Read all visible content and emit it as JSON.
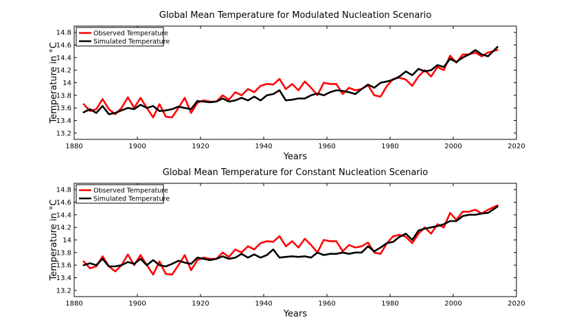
{
  "chart_data": [
    {
      "type": "line",
      "title": "Global Mean Temperature for Modulated Nucleation Scenario",
      "xlabel": "Years",
      "ylabel": "Temperature in",
      "ylabel_unit": "°C",
      "xlim": [
        1880,
        2020
      ],
      "ylim": [
        13.1,
        14.9
      ],
      "xticks": [
        1880,
        1900,
        1920,
        1940,
        1960,
        1980,
        2000,
        2020
      ],
      "yticks": [
        13.2,
        13.4,
        13.6,
        13.8,
        14,
        14.2,
        14.4,
        14.6,
        14.8
      ],
      "legend_position": "top-left",
      "series": [
        {
          "name": "Observed Temperature",
          "color": "#ff0000",
          "x": [
            1883,
            1885,
            1887,
            1889,
            1891,
            1893,
            1895,
            1897,
            1899,
            1901,
            1903,
            1905,
            1907,
            1909,
            1911,
            1913,
            1915,
            1917,
            1919,
            1921,
            1923,
            1925,
            1927,
            1929,
            1931,
            1933,
            1935,
            1937,
            1939,
            1941,
            1943,
            1945,
            1947,
            1949,
            1951,
            1953,
            1955,
            1957,
            1959,
            1961,
            1963,
            1965,
            1967,
            1969,
            1971,
            1973,
            1975,
            1977,
            1979,
            1981,
            1983,
            1985,
            1987,
            1989,
            1991,
            1993,
            1995,
            1997,
            1999,
            2001,
            2003,
            2005,
            2007,
            2009,
            2011,
            2014
          ],
          "values": [
            13.66,
            13.55,
            13.58,
            13.74,
            13.58,
            13.5,
            13.6,
            13.77,
            13.6,
            13.76,
            13.6,
            13.45,
            13.66,
            13.46,
            13.45,
            13.6,
            13.76,
            13.52,
            13.68,
            13.72,
            13.7,
            13.7,
            13.8,
            13.73,
            13.85,
            13.8,
            13.9,
            13.85,
            13.95,
            13.98,
            13.97,
            14.06,
            13.9,
            13.98,
            13.88,
            14.02,
            13.92,
            13.8,
            14.0,
            13.98,
            13.98,
            13.82,
            13.92,
            13.88,
            13.9,
            13.96,
            13.8,
            13.78,
            13.95,
            14.06,
            14.08,
            14.05,
            13.95,
            14.1,
            14.2,
            14.1,
            14.25,
            14.2,
            14.43,
            14.32,
            14.45,
            14.45,
            14.48,
            14.42,
            14.48,
            14.52
          ]
        },
        {
          "name": "Simulated Temperature",
          "color": "#000000",
          "x": [
            1883,
            1885,
            1887,
            1889,
            1891,
            1893,
            1895,
            1897,
            1899,
            1901,
            1903,
            1905,
            1907,
            1909,
            1911,
            1913,
            1915,
            1917,
            1919,
            1921,
            1923,
            1925,
            1927,
            1929,
            1931,
            1933,
            1935,
            1937,
            1939,
            1941,
            1943,
            1945,
            1947,
            1949,
            1951,
            1953,
            1955,
            1957,
            1959,
            1961,
            1963,
            1965,
            1967,
            1969,
            1971,
            1973,
            1975,
            1977,
            1979,
            1981,
            1983,
            1985,
            1987,
            1989,
            1991,
            1993,
            1995,
            1997,
            1999,
            2001,
            2003,
            2005,
            2007,
            2009,
            2011,
            2014
          ],
          "values": [
            13.53,
            13.58,
            13.52,
            13.63,
            13.5,
            13.52,
            13.56,
            13.6,
            13.58,
            13.65,
            13.6,
            13.63,
            13.55,
            13.56,
            13.58,
            13.62,
            13.6,
            13.58,
            13.71,
            13.7,
            13.69,
            13.7,
            13.75,
            13.7,
            13.72,
            13.76,
            13.72,
            13.78,
            13.72,
            13.8,
            13.82,
            13.88,
            13.72,
            13.73,
            13.75,
            13.75,
            13.8,
            13.83,
            13.8,
            13.85,
            13.88,
            13.87,
            13.85,
            13.82,
            13.9,
            13.97,
            13.92,
            14.0,
            14.02,
            14.05,
            14.1,
            14.18,
            14.12,
            14.22,
            14.18,
            14.2,
            14.28,
            14.25,
            14.38,
            14.33,
            14.4,
            14.45,
            14.52,
            14.45,
            14.42,
            14.57
          ]
        }
      ]
    },
    {
      "type": "line",
      "title": "Global Mean Temperature for Constant Nucleation Scenario",
      "xlabel": "Years",
      "ylabel": "Temperature in",
      "ylabel_unit": "°C",
      "xlim": [
        1880,
        2020
      ],
      "ylim": [
        13.1,
        14.9
      ],
      "xticks": [
        1880,
        1900,
        1920,
        1940,
        1960,
        1980,
        2000,
        2020
      ],
      "yticks": [
        13.2,
        13.4,
        13.6,
        13.8,
        14,
        14.2,
        14.4,
        14.6,
        14.8
      ],
      "legend_position": "top-left",
      "series": [
        {
          "name": "Observed Temperature",
          "color": "#ff0000",
          "x": [
            1883,
            1885,
            1887,
            1889,
            1891,
            1893,
            1895,
            1897,
            1899,
            1901,
            1903,
            1905,
            1907,
            1909,
            1911,
            1913,
            1915,
            1917,
            1919,
            1921,
            1923,
            1925,
            1927,
            1929,
            1931,
            1933,
            1935,
            1937,
            1939,
            1941,
            1943,
            1945,
            1947,
            1949,
            1951,
            1953,
            1955,
            1957,
            1959,
            1961,
            1963,
            1965,
            1967,
            1969,
            1971,
            1973,
            1975,
            1977,
            1979,
            1981,
            1983,
            1985,
            1987,
            1989,
            1991,
            1993,
            1995,
            1997,
            1999,
            2001,
            2003,
            2005,
            2007,
            2009,
            2011,
            2014
          ],
          "values": [
            13.66,
            13.55,
            13.58,
            13.74,
            13.58,
            13.5,
            13.6,
            13.77,
            13.6,
            13.76,
            13.6,
            13.45,
            13.66,
            13.46,
            13.45,
            13.6,
            13.76,
            13.52,
            13.68,
            13.72,
            13.7,
            13.7,
            13.8,
            13.73,
            13.85,
            13.8,
            13.9,
            13.85,
            13.95,
            13.98,
            13.97,
            14.06,
            13.9,
            13.98,
            13.88,
            14.02,
            13.92,
            13.8,
            14.0,
            13.98,
            13.98,
            13.82,
            13.92,
            13.88,
            13.9,
            13.96,
            13.8,
            13.78,
            13.95,
            14.06,
            14.08,
            14.05,
            13.95,
            14.1,
            14.2,
            14.1,
            14.25,
            14.2,
            14.43,
            14.32,
            14.45,
            14.45,
            14.48,
            14.42,
            14.48,
            14.55
          ]
        },
        {
          "name": "Simulated Temperature",
          "color": "#000000",
          "x": [
            1883,
            1885,
            1887,
            1889,
            1891,
            1893,
            1895,
            1897,
            1899,
            1901,
            1903,
            1905,
            1907,
            1909,
            1911,
            1913,
            1915,
            1917,
            1919,
            1921,
            1923,
            1925,
            1927,
            1929,
            1931,
            1933,
            1935,
            1937,
            1939,
            1941,
            1943,
            1945,
            1947,
            1949,
            1951,
            1953,
            1955,
            1957,
            1959,
            1961,
            1963,
            1965,
            1967,
            1969,
            1971,
            1973,
            1975,
            1977,
            1979,
            1981,
            1983,
            1985,
            1987,
            1989,
            1991,
            1993,
            1995,
            1997,
            1999,
            2001,
            2003,
            2005,
            2007,
            2009,
            2011,
            2014
          ],
          "values": [
            13.6,
            13.63,
            13.6,
            13.7,
            13.58,
            13.58,
            13.6,
            13.65,
            13.62,
            13.7,
            13.6,
            13.68,
            13.6,
            13.58,
            13.62,
            13.67,
            13.64,
            13.62,
            13.72,
            13.7,
            13.68,
            13.7,
            13.74,
            13.7,
            13.72,
            13.78,
            13.72,
            13.77,
            13.72,
            13.76,
            13.85,
            13.72,
            13.73,
            13.74,
            13.73,
            13.74,
            13.72,
            13.8,
            13.76,
            13.78,
            13.78,
            13.8,
            13.78,
            13.8,
            13.8,
            13.9,
            13.82,
            13.88,
            13.95,
            13.97,
            14.05,
            14.1,
            14.0,
            14.15,
            14.18,
            14.2,
            14.22,
            14.25,
            14.3,
            14.3,
            14.38,
            14.4,
            14.4,
            14.42,
            14.43,
            14.53
          ]
        }
      ]
    }
  ]
}
